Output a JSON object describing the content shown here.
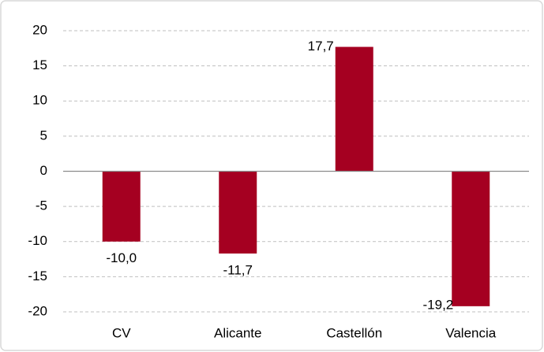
{
  "chart_data": {
    "type": "bar",
    "categories": [
      "CV",
      "Alicante",
      "Castellón",
      "Valencia"
    ],
    "values": [
      -10.0,
      -11.7,
      17.7,
      -19.2
    ],
    "value_labels": [
      "-10,0",
      "-11,7",
      "17,7",
      "-19,2"
    ],
    "color": "#a50021",
    "ylim": [
      -20,
      20
    ],
    "yticks": [
      -20,
      -15,
      -10,
      -5,
      0,
      5,
      10,
      15,
      20
    ],
    "grid": true
  }
}
